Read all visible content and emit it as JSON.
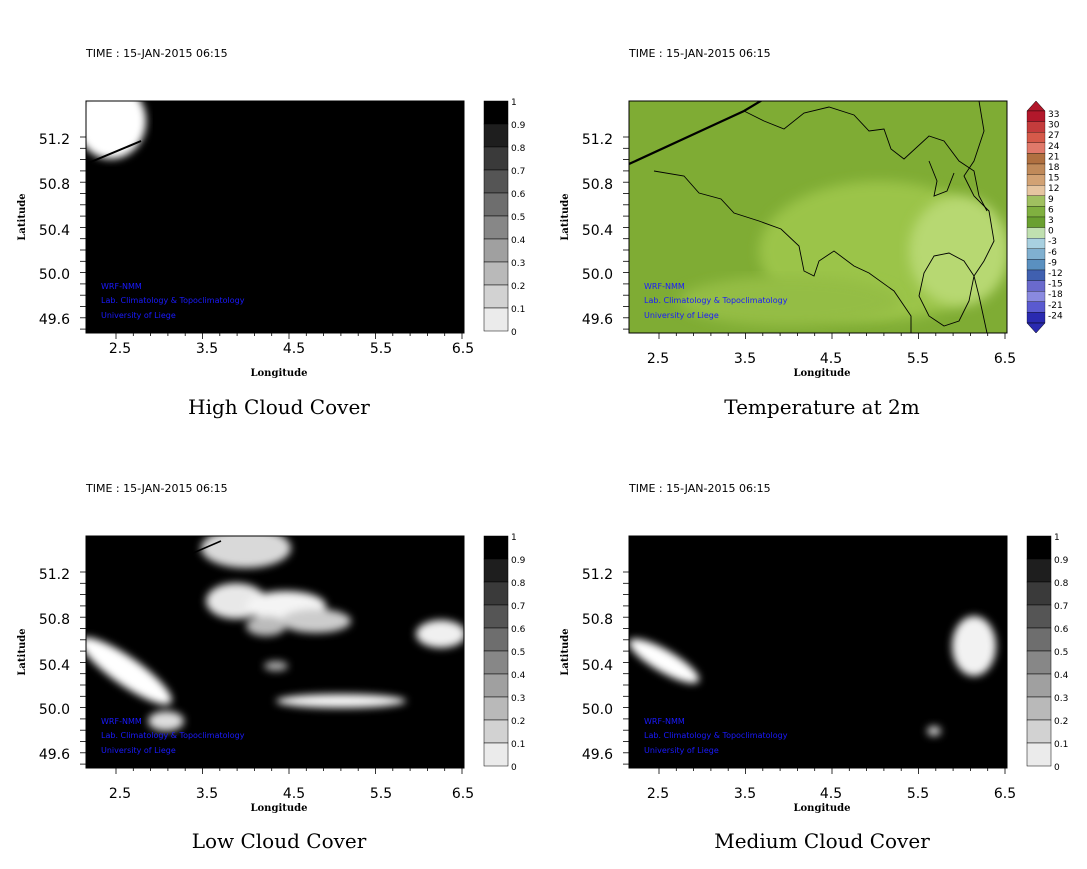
{
  "panels": [
    {
      "id": "high",
      "time": "TIME : 15-JAN-2015 06:15",
      "title": "High Cloud Cover",
      "colorbar": "gray",
      "colorbar_labels": [
        "1",
        "0.9",
        "0.8",
        "0.7",
        "0.6",
        "0.5",
        "0.4",
        "0.3",
        "0.2",
        "0.1",
        "0"
      ]
    },
    {
      "id": "temp",
      "time": "TIME : 15-JAN-2015 06:15",
      "title": "Temperature at 2m",
      "colorbar": "temp",
      "colorbar_labels": [
        "33",
        "30",
        "27",
        "24",
        "21",
        "18",
        "15",
        "12",
        "9",
        "6",
        "3",
        "0",
        "-3",
        "-6",
        "-9",
        "-12",
        "-15",
        "-18",
        "-21",
        "-24"
      ]
    },
    {
      "id": "low",
      "time": "TIME : 15-JAN-2015 06:15",
      "title": "Low Cloud Cover",
      "colorbar": "gray",
      "colorbar_labels": [
        "1",
        "0.9",
        "0.8",
        "0.7",
        "0.6",
        "0.5",
        "0.4",
        "0.3",
        "0.2",
        "0.1",
        "0"
      ]
    },
    {
      "id": "medium",
      "time": "TIME : 15-JAN-2015 06:15",
      "title": "Medium Cloud Cover",
      "colorbar": "gray",
      "colorbar_labels": [
        "1",
        "0.9",
        "0.8",
        "0.7",
        "0.6",
        "0.5",
        "0.4",
        "0.3",
        "0.2",
        "0.1",
        "0"
      ]
    }
  ],
  "axes": {
    "x_label": "Longitude",
    "y_label": "Latitude",
    "x_ticks": [
      "2.5",
      "3.5",
      "4.5",
      "5.5",
      "6.5"
    ],
    "y_ticks": [
      "51.2",
      "50.8",
      "50.4",
      "50.0",
      "49.6"
    ]
  },
  "credits": [
    "WRF-NMM",
    "Lab. Climatology & Topoclimatology",
    "University of Liege"
  ],
  "colors": {
    "cloud_full": "#000000",
    "cloud_clear": "#ffffff",
    "temp_field": "#8ab43a",
    "temp_field_light": "#b4d46a",
    "credit_text": "#1a1aff"
  }
}
